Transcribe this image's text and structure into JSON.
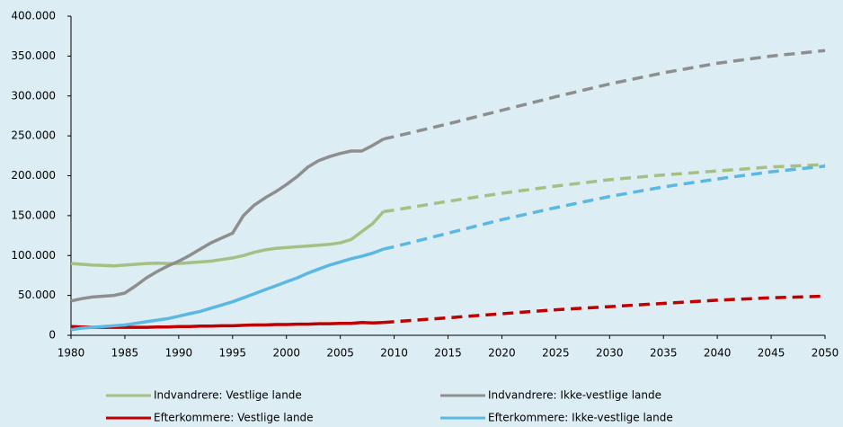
{
  "chart_data": {
    "type": "line",
    "x": [
      1980,
      1981,
      1982,
      1983,
      1984,
      1985,
      1986,
      1987,
      1988,
      1989,
      1990,
      1991,
      1992,
      1993,
      1994,
      1995,
      1996,
      1997,
      1998,
      1999,
      2000,
      2001,
      2002,
      2003,
      2004,
      2005,
      2006,
      2007,
      2008,
      2009,
      2010,
      2015,
      2020,
      2025,
      2030,
      2035,
      2040,
      2045,
      2050
    ],
    "dashed_from": 2009,
    "series": [
      {
        "name": "Indvandrere: Vestlige lande",
        "color": "#a6c083",
        "values": [
          90000,
          89000,
          88000,
          87500,
          87000,
          88000,
          89000,
          90000,
          90500,
          90000,
          90000,
          91000,
          92000,
          93000,
          95000,
          97000,
          100000,
          104000,
          107000,
          109000,
          110000,
          111000,
          112000,
          113000,
          114000,
          116000,
          120000,
          130000,
          140000,
          155000,
          157000,
          168000,
          178000,
          187000,
          195000,
          201000,
          206000,
          211000,
          214000
        ]
      },
      {
        "name": "Indvandrere: Ikke-vestlige lande",
        "color": "#8e8e8e",
        "values": [
          43000,
          46000,
          48000,
          49000,
          50000,
          53000,
          62000,
          72000,
          80000,
          87000,
          93000,
          100000,
          108000,
          116000,
          122000,
          128000,
          150000,
          163000,
          172000,
          180000,
          189000,
          199000,
          211000,
          219000,
          224000,
          228000,
          231000,
          231000,
          238000,
          246000,
          249000,
          265000,
          282000,
          299000,
          315000,
          329000,
          341000,
          350000,
          357000
        ]
      },
      {
        "name": "Efterkommere: Vestlige lande",
        "color": "#c00000",
        "values": [
          11000,
          10500,
          10000,
          10000,
          10000,
          10000,
          10000,
          10000,
          10500,
          10500,
          11000,
          11000,
          11500,
          11500,
          12000,
          12000,
          12500,
          13000,
          13000,
          13500,
          13500,
          14000,
          14000,
          14500,
          14500,
          15000,
          15000,
          16000,
          15500,
          16000,
          17000,
          22000,
          27000,
          32000,
          36000,
          40000,
          44000,
          47000,
          49000
        ]
      },
      {
        "name": "Efterkommere: Ikke-vestlige lande",
        "color": "#5bb8e2",
        "values": [
          7000,
          9000,
          10000,
          11000,
          12000,
          13000,
          15000,
          17000,
          19000,
          21000,
          24000,
          27000,
          30000,
          34000,
          38000,
          42000,
          47000,
          52000,
          57000,
          62000,
          67000,
          72000,
          78000,
          83000,
          88000,
          92000,
          96000,
          99000,
          103000,
          108000,
          111000,
          128000,
          145000,
          160000,
          174000,
          186000,
          196000,
          205000,
          212000
        ]
      }
    ],
    "xlim": [
      1980,
      2050
    ],
    "xticks": [
      1980,
      1985,
      1990,
      1995,
      2000,
      2005,
      2010,
      2015,
      2020,
      2025,
      2030,
      2035,
      2040,
      2045,
      2050
    ],
    "ylim": [
      0,
      400000
    ],
    "yticks": [
      0,
      {
        "value": 50000,
        "label": "50.000"
      },
      {
        "value": 100000,
        "label": "100.000"
      },
      {
        "value": 150000,
        "label": "150.000"
      },
      {
        "value": 200000,
        "label": "200.000"
      },
      {
        "value": 250000,
        "label": "250.000"
      },
      {
        "value": 300000,
        "label": "300.000"
      },
      {
        "value": 350000,
        "label": "350.000"
      },
      {
        "value": 400000,
        "label": "400.000"
      }
    ]
  }
}
